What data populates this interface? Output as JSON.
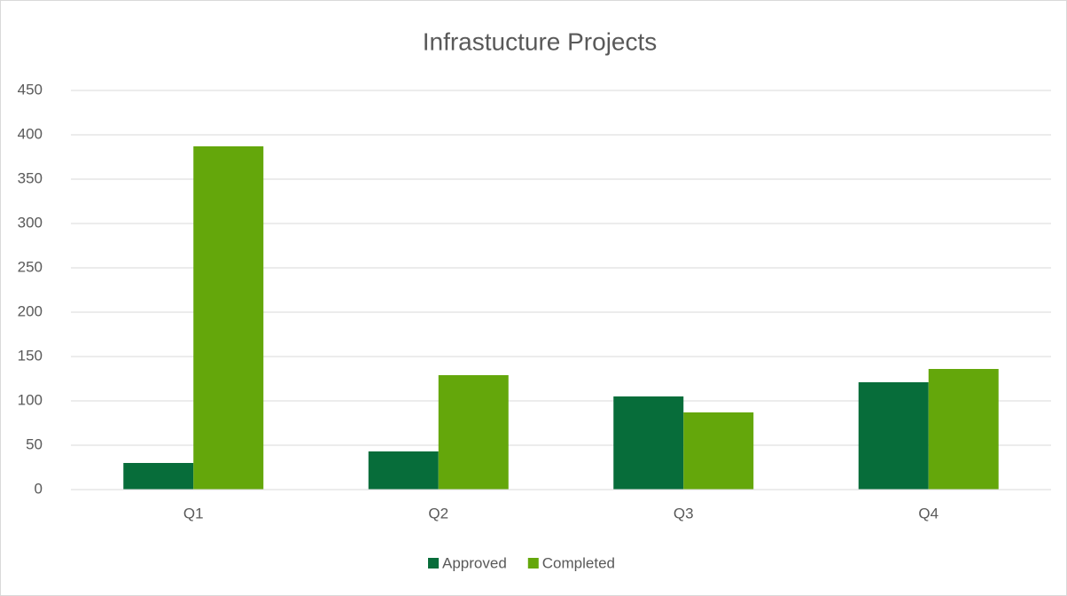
{
  "chart_data": {
    "type": "bar",
    "title": "Infrastucture Projects",
    "categories": [
      "Q1",
      "Q2",
      "Q3",
      "Q4"
    ],
    "series": [
      {
        "name": "Approved",
        "color": "#076d3a",
        "values": [
          30,
          43,
          105,
          121
        ]
      },
      {
        "name": "Completed",
        "color": "#64a70b",
        "values": [
          387,
          129,
          87,
          136
        ]
      }
    ],
    "ylim": [
      0,
      450
    ],
    "yticks": [
      0,
      50,
      100,
      150,
      200,
      250,
      300,
      350,
      400,
      450
    ],
    "grid": true,
    "legend": "bottom"
  }
}
